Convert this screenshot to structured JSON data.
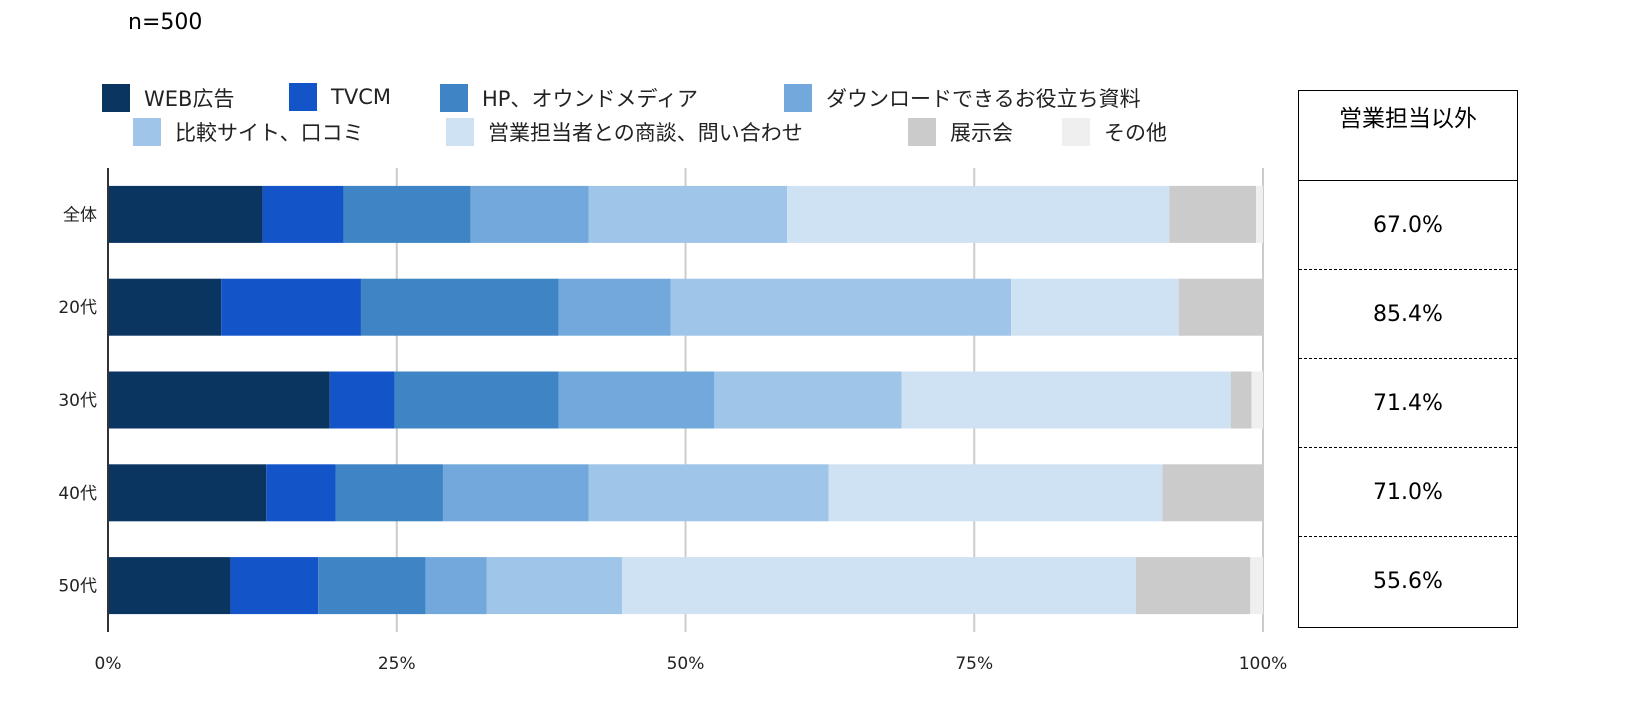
{
  "note": "n=500",
  "chart_data": {
    "type": "bar",
    "orientation": "horizontal",
    "stacked": "percent",
    "categories": [
      "全体",
      "20代",
      "30代",
      "40代",
      "50代"
    ],
    "series": [
      {
        "name": "WEB広告",
        "color": "#0b3561",
        "values": [
          13.4,
          9.8,
          19.2,
          13.7,
          10.6
        ]
      },
      {
        "name": "TVCM",
        "color": "#1355c8",
        "values": [
          7.0,
          12.1,
          5.6,
          6.0,
          7.6
        ]
      },
      {
        "name": "HP、オウンドメディア",
        "color": "#3f84c4",
        "values": [
          11.0,
          17.1,
          14.2,
          9.3,
          9.3
        ]
      },
      {
        "name": "ダウンロードできるお役立ち資料",
        "color": "#72a8db",
        "values": [
          10.2,
          9.7,
          13.5,
          12.6,
          5.3
        ]
      },
      {
        "name": "比較サイト、口コミ",
        "color": "#9fc5e8",
        "values": [
          17.2,
          29.5,
          16.2,
          20.8,
          11.7
        ]
      },
      {
        "name": "営業担当者との商談、問い合わせ",
        "color": "#cfe2f3",
        "values": [
          33.1,
          14.5,
          28.5,
          28.9,
          44.5
        ]
      },
      {
        "name": "展示会",
        "color": "#cbcbcb",
        "values": [
          7.5,
          7.3,
          1.8,
          8.7,
          9.9
        ]
      },
      {
        "name": "その他",
        "color": "#efefef",
        "values": [
          0.6,
          0,
          1.0,
          0,
          1.1
        ]
      }
    ],
    "xlim": [
      0,
      100
    ],
    "xticks": [
      "0%",
      "25%",
      "50%",
      "75%",
      "100%"
    ],
    "grid": true,
    "legend_placement": "top"
  },
  "side_table": {
    "header": "営業担当以外",
    "values": [
      "67.0%",
      "85.4%",
      "71.4%",
      "71.0%",
      "55.6%"
    ]
  }
}
